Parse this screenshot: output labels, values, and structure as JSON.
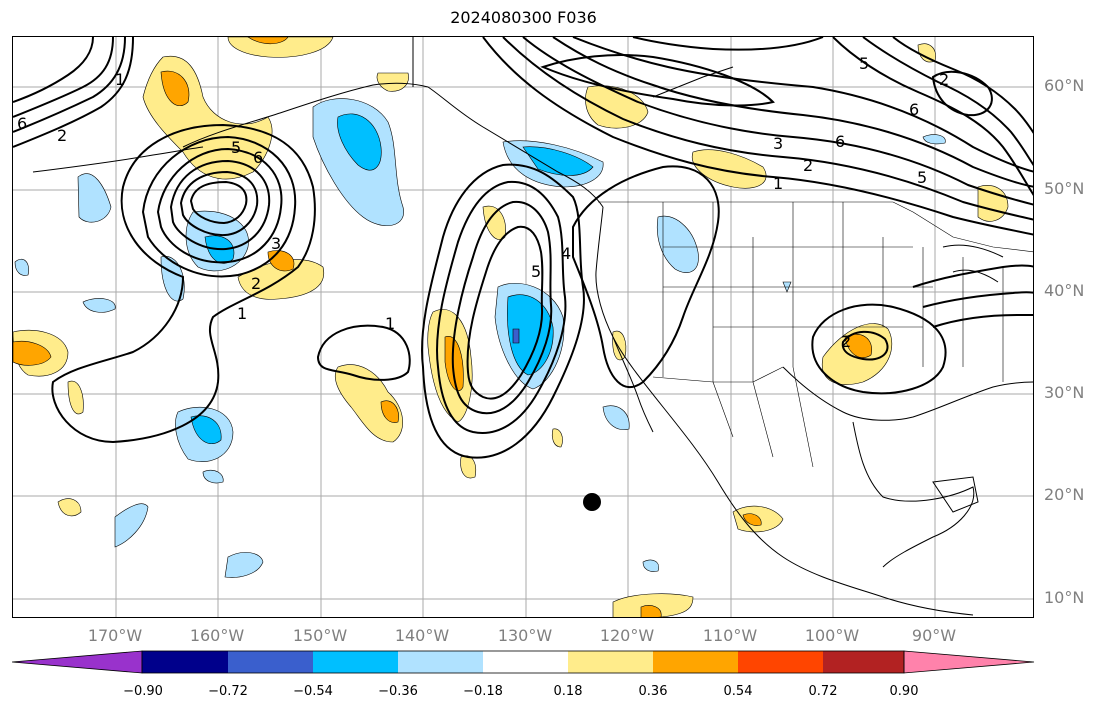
{
  "title": "2024080300 F036",
  "lat_labels": [
    "60°N",
    "50°N",
    "40°N",
    "30°N",
    "20°N",
    "10°N"
  ],
  "lon_labels": [
    "170°W",
    "160°W",
    "150°W",
    "140°W",
    "130°W",
    "120°W",
    "110°W",
    "100°W",
    "90°W"
  ],
  "colorbar": {
    "ticks": [
      "−0.90",
      "−0.72",
      "−0.54",
      "−0.36",
      "−0.18",
      "0.18",
      "0.36",
      "0.54",
      "0.72",
      "0.90"
    ],
    "colors": [
      "#9932cc",
      "#00008b",
      "#3a5fcd",
      "#00bfff",
      "#b0e2ff",
      "#ffffff",
      "#ffec8b",
      "#ffa500",
      "#ff4500",
      "#b22222",
      "#ff82ab"
    ]
  },
  "contour_labels": [
    "1",
    "2",
    "3",
    "4",
    "5",
    "6"
  ],
  "colors": {
    "grid": "#aaaaaa",
    "contour": "#000000",
    "axis_text": "#808080"
  }
}
